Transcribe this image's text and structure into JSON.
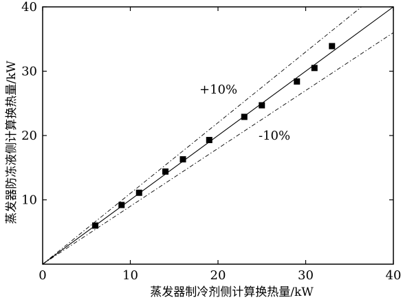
{
  "chart_data": {
    "type": "scatter",
    "title": "",
    "xlabel": "蒸发器制冷剂侧计算换热量/kW",
    "ylabel": "蒸发器防冻液侧计算换热量/kW",
    "xlim": [
      0,
      40
    ],
    "ylim": [
      0,
      40
    ],
    "x_ticks": [
      "0",
      "10",
      "20",
      "30",
      "40"
    ],
    "y_ticks": [
      "10",
      "20",
      "30",
      "40"
    ],
    "grid": false,
    "legend": "none",
    "series": [
      {
        "x": [
          6,
          9,
          11,
          14,
          16,
          19,
          23,
          25,
          29,
          31,
          33
        ],
        "y": [
          6.0,
          9.2,
          11.1,
          14.4,
          16.3,
          19.3,
          22.9,
          24.7,
          28.4,
          30.5,
          33.9
        ]
      }
    ],
    "reference_lines": [
      {
        "label": "",
        "slope": 1.0,
        "style": "solid"
      },
      {
        "label": "+10%",
        "slope": 1.1,
        "style": "dash-dot"
      },
      {
        "label": "-10%",
        "slope": 0.9,
        "style": "dash-dot"
      }
    ],
    "marker_color": "#000000"
  }
}
